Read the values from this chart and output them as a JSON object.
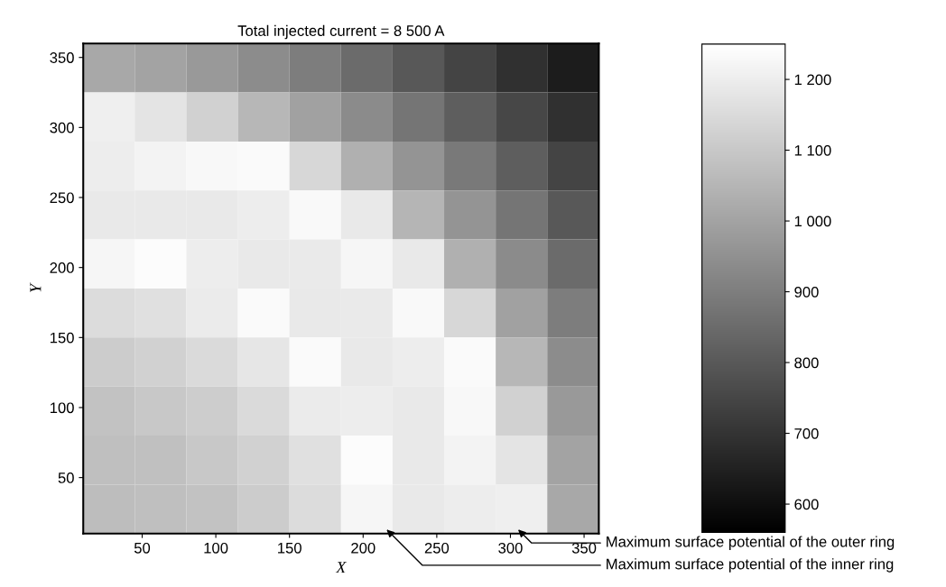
{
  "chart_data": {
    "type": "heatmap",
    "title": "Total injected current = 8 500 A",
    "xlabel": "X",
    "ylabel": "Y",
    "xlim": [
      10,
      360
    ],
    "ylim": [
      10,
      360
    ],
    "xticks": [
      50,
      100,
      150,
      200,
      250,
      300,
      350
    ],
    "yticks": [
      50,
      100,
      150,
      200,
      250,
      300,
      350
    ],
    "cells": [
      [
        1013,
        1000,
        975,
        940,
        897,
        850,
        798,
        745,
        690,
        636
      ],
      [
        1205,
        1175,
        1125,
        1055,
        995,
        937,
        876,
        815,
        752,
        690
      ],
      [
        1200,
        1215,
        1230,
        1235,
        1140,
        1035,
        960,
        887,
        815,
        745
      ],
      [
        1190,
        1190,
        1190,
        1200,
        1232,
        1190,
        1050,
        960,
        876,
        798
      ],
      [
        1225,
        1240,
        1200,
        1190,
        1192,
        1225,
        1190,
        1035,
        937,
        850
      ],
      [
        1155,
        1165,
        1195,
        1235,
        1190,
        1192,
        1232,
        1140,
        995,
        897
      ],
      [
        1110,
        1125,
        1150,
        1180,
        1235,
        1190,
        1200,
        1235,
        1055,
        940
      ],
      [
        1085,
        1100,
        1115,
        1150,
        1195,
        1200,
        1190,
        1230,
        1125,
        975
      ],
      [
        1075,
        1080,
        1100,
        1125,
        1165,
        1240,
        1190,
        1215,
        1175,
        1000
      ],
      [
        1070,
        1075,
        1085,
        1110,
        1155,
        1225,
        1190,
        1200,
        1205,
        1013
      ]
    ],
    "clim": [
      560,
      1250
    ],
    "cticks": [
      {
        "value": 600,
        "label": "600"
      },
      {
        "value": 700,
        "label": "700"
      },
      {
        "value": 800,
        "label": "800"
      },
      {
        "value": 900,
        "label": "900"
      },
      {
        "value": 1000,
        "label": "1 000"
      },
      {
        "value": 1100,
        "label": "1 100"
      },
      {
        "value": 1200,
        "label": "1 200"
      }
    ],
    "annotations": [
      "Maximum surface potential of the inner ring",
      "Maximum surface potential of the outer ring"
    ],
    "grid": false
  }
}
